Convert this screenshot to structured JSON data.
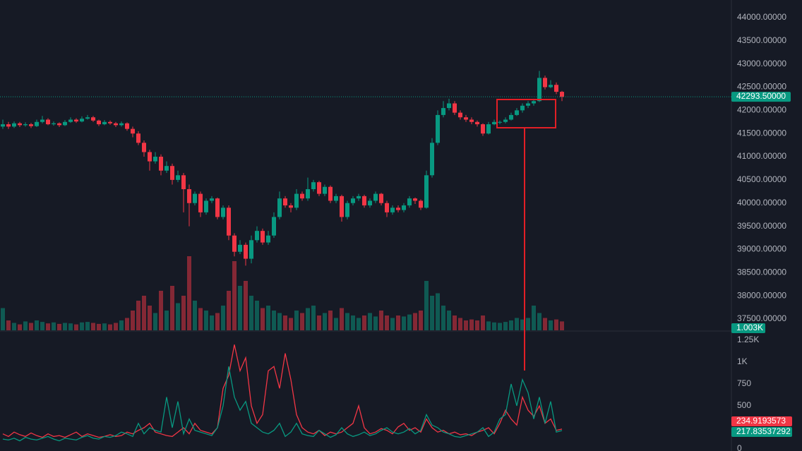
{
  "chart_data": {
    "type": "candlestick",
    "ylim": [
      37256,
      44380
    ],
    "yticks": [
      {
        "value": 37500,
        "label": "37500.00000"
      },
      {
        "value": 38000,
        "label": "38000.00000"
      },
      {
        "value": 38500,
        "label": "38500.00000"
      },
      {
        "value": 39000,
        "label": "39000.00000"
      },
      {
        "value": 39500,
        "label": "39500.00000"
      },
      {
        "value": 40000,
        "label": "40000.00000"
      },
      {
        "value": 40500,
        "label": "40500.00000"
      },
      {
        "value": 41000,
        "label": "41000.00000"
      },
      {
        "value": 41500,
        "label": "41500.00000"
      },
      {
        "value": 42000,
        "label": "42000.00000"
      },
      {
        "value": 42500,
        "label": "42500.00000"
      },
      {
        "value": 43000,
        "label": "43000.00000"
      },
      {
        "value": 43500,
        "label": "43500.00000"
      },
      {
        "value": 44000,
        "label": "44000.00000"
      }
    ],
    "up_color": "#089981",
    "down_color": "#f23645",
    "last_price": {
      "value": 42293.5,
      "label": "42293.50000"
    },
    "ohlc": [
      [
        41650,
        41800,
        41600,
        41700
      ],
      [
        41700,
        41750,
        41600,
        41650
      ],
      [
        41650,
        41760,
        41620,
        41720
      ],
      [
        41720,
        41750,
        41640,
        41680
      ],
      [
        41680,
        41740,
        41650,
        41700
      ],
      [
        41700,
        41730,
        41620,
        41660
      ],
      [
        41660,
        41800,
        41640,
        41750
      ],
      [
        41750,
        41880,
        41720,
        41800
      ],
      [
        41800,
        41830,
        41680,
        41700
      ],
      [
        41700,
        41760,
        41670,
        41720
      ],
      [
        41720,
        41740,
        41640,
        41680
      ],
      [
        41680,
        41790,
        41660,
        41750
      ],
      [
        41750,
        41850,
        41730,
        41800
      ],
      [
        41800,
        41830,
        41730,
        41760
      ],
      [
        41760,
        41870,
        41740,
        41820
      ],
      [
        41820,
        41900,
        41800,
        41850
      ],
      [
        41850,
        41880,
        41750,
        41780
      ],
      [
        41780,
        41800,
        41660,
        41700
      ],
      [
        41700,
        41790,
        41680,
        41750
      ],
      [
        41750,
        41780,
        41690,
        41720
      ],
      [
        41720,
        41750,
        41640,
        41680
      ],
      [
        41680,
        41760,
        41650,
        41720
      ],
      [
        41720,
        41740,
        41560,
        41600
      ],
      [
        41600,
        41650,
        41420,
        41500
      ],
      [
        41500,
        41550,
        41250,
        41300
      ],
      [
        41300,
        41350,
        41000,
        41100
      ],
      [
        41100,
        41150,
        40700,
        40900
      ],
      [
        40900,
        41100,
        40850,
        41000
      ],
      [
        41000,
        41050,
        40600,
        40700
      ],
      [
        40700,
        40900,
        40650,
        40800
      ],
      [
        40800,
        40850,
        40400,
        40500
      ],
      [
        40500,
        40700,
        40450,
        40600
      ],
      [
        40600,
        40650,
        39800,
        40300
      ],
      [
        40300,
        40400,
        39500,
        40000
      ],
      [
        40000,
        40250,
        39950,
        40200
      ],
      [
        40200,
        40250,
        39700,
        39800
      ],
      [
        39800,
        40100,
        39750,
        40050
      ],
      [
        40050,
        40150,
        40000,
        40100
      ],
      [
        40100,
        40120,
        39650,
        39700
      ],
      [
        39700,
        39950,
        39650,
        39900
      ],
      [
        39900,
        39950,
        39200,
        39300
      ],
      [
        39300,
        39350,
        38850,
        38950
      ],
      [
        38950,
        39200,
        38900,
        39100
      ],
      [
        39100,
        39150,
        38650,
        38800
      ],
      [
        38800,
        39300,
        38700,
        39200
      ],
      [
        39200,
        39500,
        39150,
        39400
      ],
      [
        39400,
        39450,
        39100,
        39150
      ],
      [
        39150,
        39400,
        39100,
        39300
      ],
      [
        39300,
        39800,
        39250,
        39700
      ],
      [
        39700,
        40250,
        39650,
        40100
      ],
      [
        40100,
        40150,
        39900,
        39950
      ],
      [
        39950,
        40000,
        39800,
        39900
      ],
      [
        39900,
        40300,
        39850,
        40200
      ],
      [
        40200,
        40250,
        40050,
        40100
      ],
      [
        40100,
        40550,
        40050,
        40300
      ],
      [
        40300,
        40500,
        40250,
        40450
      ],
      [
        40450,
        40480,
        40150,
        40200
      ],
      [
        40200,
        40400,
        40150,
        40350
      ],
      [
        40350,
        40380,
        40000,
        40050
      ],
      [
        40050,
        40200,
        40000,
        40150
      ],
      [
        40150,
        40180,
        39600,
        39700
      ],
      [
        39700,
        40050,
        39650,
        40000
      ],
      [
        40000,
        40150,
        39950,
        40100
      ],
      [
        40100,
        40200,
        40050,
        40150
      ],
      [
        40150,
        40180,
        39900,
        39950
      ],
      [
        39950,
        40100,
        39900,
        40050
      ],
      [
        40050,
        40250,
        40000,
        40200
      ],
      [
        40200,
        40220,
        39950,
        40000
      ],
      [
        40000,
        40050,
        39700,
        39800
      ],
      [
        39800,
        39950,
        39750,
        39900
      ],
      [
        39900,
        39950,
        39800,
        39850
      ],
      [
        39850,
        40000,
        39800,
        39950
      ],
      [
        39950,
        40150,
        39900,
        40100
      ],
      [
        40100,
        40120,
        39980,
        40050
      ],
      [
        40050,
        40080,
        39850,
        39900
      ],
      [
        39900,
        40700,
        39880,
        40600
      ],
      [
        40600,
        41400,
        40550,
        41300
      ],
      [
        41300,
        42000,
        41250,
        41900
      ],
      [
        41900,
        42200,
        41850,
        42050
      ],
      [
        42050,
        42250,
        42000,
        42150
      ],
      [
        42150,
        42200,
        41900,
        41950
      ],
      [
        41950,
        42000,
        41800,
        41850
      ],
      [
        41850,
        41900,
        41750,
        41800
      ],
      [
        41800,
        41850,
        41700,
        41750
      ],
      [
        41750,
        41780,
        41650,
        41700
      ],
      [
        41700,
        41720,
        41450,
        41500
      ],
      [
        41500,
        41750,
        41480,
        41700
      ],
      [
        41700,
        41800,
        41680,
        41750
      ],
      [
        41750,
        41780,
        41700,
        41750
      ],
      [
        41750,
        41850,
        41720,
        41800
      ],
      [
        41800,
        41950,
        41780,
        41900
      ],
      [
        41900,
        42050,
        41880,
        42000
      ],
      [
        42000,
        42150,
        41950,
        42100
      ],
      [
        42100,
        42200,
        42050,
        42150
      ],
      [
        42150,
        42250,
        42100,
        42200
      ],
      [
        42200,
        42850,
        42180,
        42700
      ],
      [
        42700,
        42750,
        42450,
        42500
      ],
      [
        42500,
        42650,
        42480,
        42550
      ],
      [
        42550,
        42600,
        42350,
        42400
      ],
      [
        42400,
        42420,
        42200,
        42290
      ]
    ],
    "volume_ylim": [
      0,
      2000
    ],
    "volume": [
      450,
      200,
      150,
      120,
      180,
      150,
      200,
      170,
      140,
      160,
      130,
      150,
      140,
      120,
      160,
      170,
      150,
      130,
      140,
      120,
      150,
      200,
      250,
      400,
      600,
      700,
      500,
      350,
      800,
      400,
      900,
      550,
      700,
      1500,
      600,
      450,
      400,
      300,
      350,
      500,
      800,
      1400,
      900,
      1000,
      700,
      600,
      450,
      500,
      400,
      350,
      300,
      250,
      400,
      350,
      450,
      500,
      300,
      350,
      400,
      250,
      450,
      350,
      300,
      250,
      300,
      350,
      280,
      400,
      300,
      250,
      300,
      280,
      320,
      350,
      400,
      1000,
      700,
      750,
      500,
      400,
      300,
      250,
      200,
      220,
      200,
      300,
      180,
      160,
      150,
      170,
      200,
      250,
      220,
      250,
      500,
      350,
      250,
      200,
      220,
      180
    ],
    "volume_last": {
      "value": 1003,
      "label": "1.003K"
    },
    "y2lim": [
      0,
      1347
    ],
    "y2ticks": [
      0,
      500,
      750,
      {
        "value": 1000,
        "label": "1K"
      },
      {
        "value": 1250,
        "label": "1.25K"
      }
    ],
    "lines": [
      {
        "color": "#f23645",
        "values": [
          180,
          150,
          200,
          170,
          150,
          190,
          160,
          140,
          180,
          150,
          160,
          140,
          170,
          200,
          150,
          180,
          160,
          140,
          150,
          170,
          150,
          160,
          200,
          180,
          220,
          250,
          300,
          200,
          180,
          160,
          150,
          200,
          250,
          180,
          300,
          220,
          200,
          180,
          250,
          700,
          850,
          1200,
          900,
          1050,
          500,
          300,
          400,
          900,
          950,
          700,
          1100,
          800,
          400,
          250,
          200,
          180,
          220,
          160,
          200,
          180,
          200,
          250,
          300,
          500,
          250,
          180,
          200,
          240,
          220,
          180,
          260,
          300,
          220,
          250,
          200,
          350,
          250,
          200,
          220,
          180,
          200,
          170,
          180,
          160,
          200,
          220,
          250,
          180,
          300,
          450,
          350,
          280,
          600,
          450,
          380,
          500,
          300,
          350,
          220,
          235
        ],
        "last": 234.9193573
      },
      {
        "color": "#089981",
        "values": [
          120,
          110,
          130,
          100,
          140,
          120,
          110,
          130,
          150,
          120,
          100,
          130,
          120,
          110,
          140,
          160,
          130,
          120,
          150,
          140,
          160,
          200,
          180,
          150,
          300,
          180,
          250,
          220,
          200,
          600,
          250,
          550,
          180,
          350,
          220,
          200,
          180,
          160,
          250,
          500,
          950,
          600,
          450,
          550,
          300,
          250,
          200,
          180,
          220,
          300,
          150,
          200,
          300,
          180,
          160,
          150,
          220,
          180,
          140,
          170,
          250,
          180,
          150,
          170,
          200,
          160,
          180,
          220,
          250,
          200,
          180,
          200,
          240,
          180,
          220,
          400,
          280,
          250,
          200,
          180,
          150,
          140,
          160,
          180,
          200,
          250,
          150,
          200,
          350,
          400,
          750,
          500,
          800,
          650,
          350,
          600,
          300,
          550,
          200,
          218
        ],
        "last": 217.83537292
      }
    ]
  }
}
